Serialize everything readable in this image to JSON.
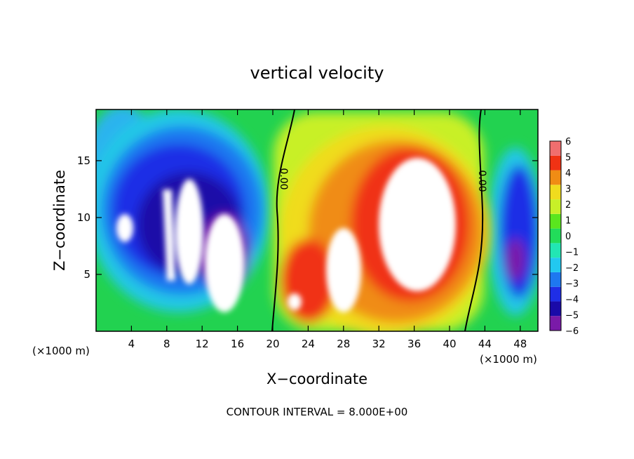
{
  "chart_data": {
    "type": "heatmap",
    "title": "vertical velocity",
    "xlabel": "X−coordinate",
    "ylabel": "Z−coordinate",
    "x_unit_label": "(×1000 m)",
    "x_unit_label_right": "(×1000 m)",
    "footer": "CONTOUR INTERVAL = 8.000E+00",
    "xlim": [
      0,
      50
    ],
    "ylim": [
      0,
      19.5
    ],
    "x_ticks": [
      4,
      8,
      12,
      16,
      20,
      24,
      28,
      32,
      36,
      40,
      44,
      48
    ],
    "y_ticks": [
      5,
      10,
      15
    ],
    "colorbar": {
      "tick_labels": [
        "6",
        "5",
        "4",
        "3",
        "2",
        "1",
        "0",
        "−1",
        "−2",
        "−3",
        "−4",
        "−5",
        "−6"
      ],
      "range": [
        -6,
        6
      ],
      "colors": [
        "#7a1aa8",
        "#1a0aa8",
        "#1f2ee6",
        "#1e78f0",
        "#22c8f0",
        "#22e6b4",
        "#22dc5a",
        "#5ae61e",
        "#c8f028",
        "#f0dc1e",
        "#f08c14",
        "#f03214",
        "#f06e6e"
      ]
    },
    "contour_labels": [
      {
        "text": "0.00",
        "x": 21.7,
        "y": 14.0
      },
      {
        "text": "0.00",
        "x": 43.7,
        "y": 13.5
      }
    ],
    "features": [
      {
        "kind": "downdraft",
        "x": 10.5,
        "z": 9.5,
        "value": -6
      },
      {
        "kind": "downdraft",
        "x": 47.0,
        "z": 9.0,
        "value": -5
      },
      {
        "kind": "updraft",
        "x": 34.5,
        "z": 10.5,
        "value": 6
      },
      {
        "kind": "updraft",
        "x": 26.0,
        "z": 6.0,
        "value": 4
      }
    ]
  }
}
